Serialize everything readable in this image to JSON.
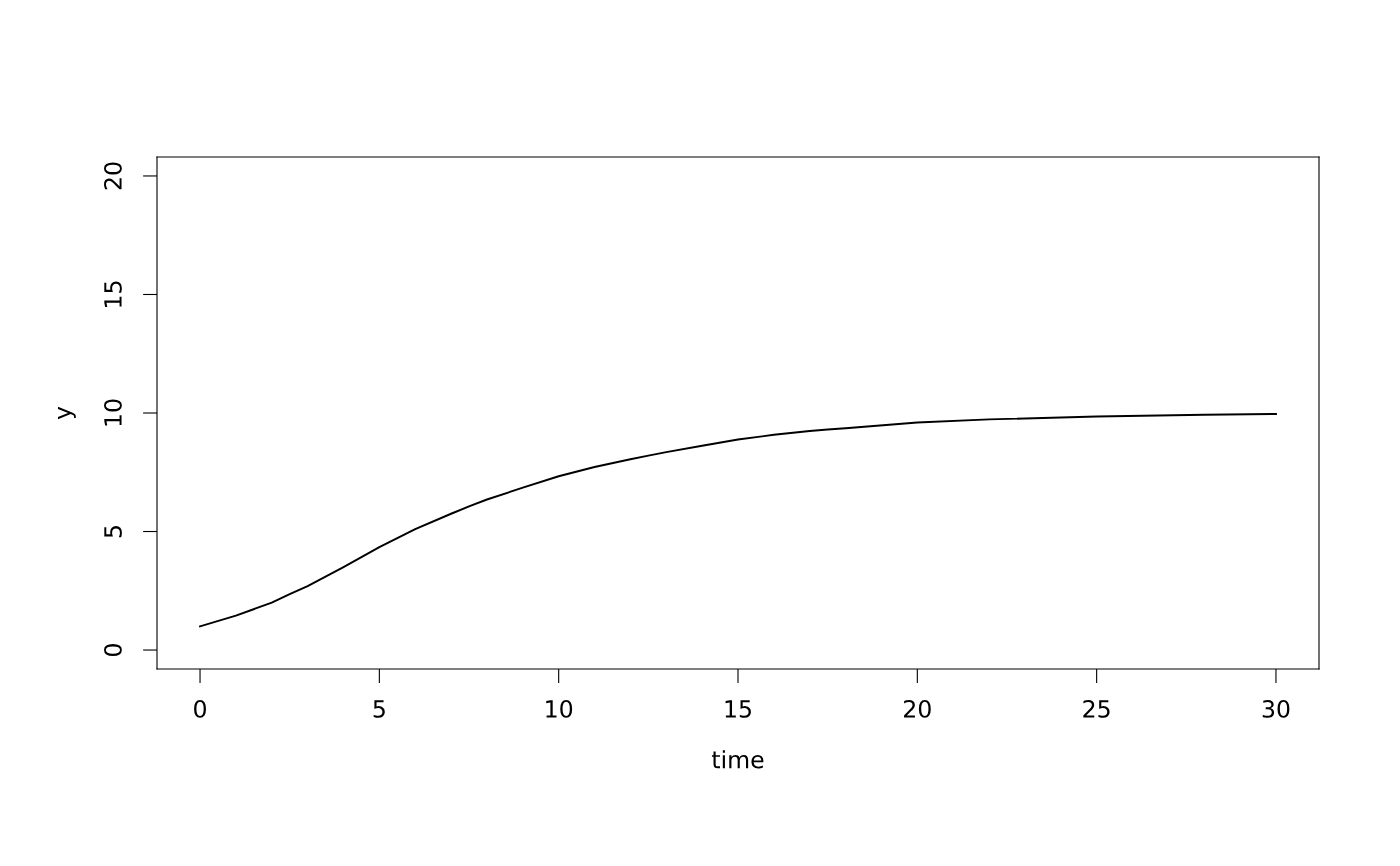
{
  "chart_data": {
    "type": "line",
    "xlabel": "time",
    "ylabel": "y",
    "x": [
      0,
      1,
      2,
      2.5,
      3,
      4,
      5,
      6,
      7,
      7.5,
      8,
      9,
      10,
      11,
      12,
      12.5,
      13,
      14,
      15,
      16,
      17,
      17.5,
      18,
      20,
      22,
      25,
      28,
      30
    ],
    "series": [
      {
        "color": "#000000",
        "values": [
          1.0,
          1.45,
          2.0,
          2.36,
          2.7,
          3.5,
          4.34,
          5.1,
          5.75,
          6.06,
          6.35,
          6.85,
          7.33,
          7.72,
          8.05,
          8.2,
          8.35,
          8.62,
          8.88,
          9.08,
          9.24,
          9.3,
          9.36,
          9.6,
          9.73,
          9.85,
          9.93,
          9.96
        ]
      }
    ],
    "xlim": [
      -1.2,
      31.2
    ],
    "ylim": [
      -0.8,
      20.8
    ],
    "xticks": [
      0,
      5,
      10,
      15,
      20,
      25,
      30
    ],
    "yticks": [
      0,
      5,
      10,
      15,
      20
    ],
    "grid": false,
    "legend": false,
    "marker": "none",
    "line_style": "solid"
  }
}
